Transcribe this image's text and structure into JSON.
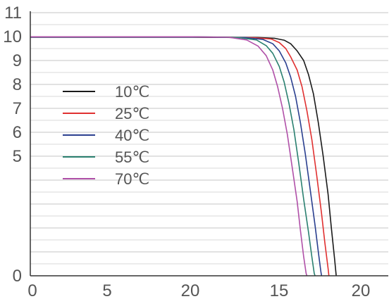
{
  "chart_data": {
    "type": "line",
    "title": "",
    "xlabel": "",
    "ylabel": "",
    "x_tick_labels": [
      "0",
      "5",
      "20",
      "15",
      "20"
    ],
    "y_tick_labels": [
      "0",
      "5",
      "6",
      "7",
      "8",
      "9",
      "10",
      "11"
    ],
    "ylim": [
      0,
      11
    ],
    "grid": true,
    "legend_position": "left",
    "series": [
      {
        "name": "10℃",
        "color": "#1a1a1a",
        "points": [
          [
            0,
            9.97
          ],
          [
            10,
            9.97
          ],
          [
            14,
            9.96
          ],
          [
            15,
            9.93
          ],
          [
            15.6,
            9.85
          ],
          [
            16,
            9.7
          ],
          [
            16.4,
            9.4
          ],
          [
            16.8,
            9.0
          ],
          [
            17.1,
            8.4
          ],
          [
            17.4,
            7.6
          ],
          [
            17.7,
            6.4
          ],
          [
            18.0,
            5.0
          ],
          [
            18.3,
            3.4
          ],
          [
            18.5,
            2.0
          ],
          [
            18.7,
            0.7
          ],
          [
            18.8,
            0
          ]
        ]
      },
      {
        "name": "25℃",
        "color": "#e03030",
        "points": [
          [
            0,
            9.98
          ],
          [
            10,
            9.98
          ],
          [
            13.6,
            9.96
          ],
          [
            14.8,
            9.9
          ],
          [
            15.3,
            9.75
          ],
          [
            15.7,
            9.5
          ],
          [
            16.0,
            9.15
          ],
          [
            16.4,
            8.6
          ],
          [
            16.7,
            7.9
          ],
          [
            17.0,
            6.9
          ],
          [
            17.3,
            5.7
          ],
          [
            17.6,
            4.2
          ],
          [
            17.9,
            2.6
          ],
          [
            18.1,
            1.4
          ],
          [
            18.3,
            0.3
          ],
          [
            18.35,
            0
          ]
        ]
      },
      {
        "name": "40℃",
        "color": "#2a3f8f",
        "points": [
          [
            0,
            9.98
          ],
          [
            10,
            9.98
          ],
          [
            13.2,
            9.96
          ],
          [
            14.3,
            9.88
          ],
          [
            14.9,
            9.7
          ],
          [
            15.3,
            9.4
          ],
          [
            15.7,
            8.9
          ],
          [
            16.0,
            8.3
          ],
          [
            16.3,
            7.5
          ],
          [
            16.6,
            6.4
          ],
          [
            16.9,
            5.1
          ],
          [
            17.2,
            3.6
          ],
          [
            17.5,
            2.1
          ],
          [
            17.7,
            1.0
          ],
          [
            17.85,
            0.2
          ],
          [
            17.9,
            0
          ]
        ]
      },
      {
        "name": "55℃",
        "color": "#2a8070",
        "points": [
          [
            0,
            9.99
          ],
          [
            10,
            9.99
          ],
          [
            12.8,
            9.96
          ],
          [
            13.9,
            9.86
          ],
          [
            14.5,
            9.62
          ],
          [
            14.9,
            9.3
          ],
          [
            15.3,
            8.75
          ],
          [
            15.6,
            8.1
          ],
          [
            15.9,
            7.2
          ],
          [
            16.2,
            6.1
          ],
          [
            16.5,
            4.7
          ],
          [
            16.8,
            3.2
          ],
          [
            17.1,
            1.8
          ],
          [
            17.3,
            0.8
          ],
          [
            17.45,
            0.1
          ],
          [
            17.5,
            0
          ]
        ]
      },
      {
        "name": "70℃",
        "color": "#b050a8",
        "points": [
          [
            0,
            9.99
          ],
          [
            10,
            9.99
          ],
          [
            12.2,
            9.97
          ],
          [
            13.3,
            9.86
          ],
          [
            14.0,
            9.6
          ],
          [
            14.5,
            9.2
          ],
          [
            14.9,
            8.6
          ],
          [
            15.2,
            7.9
          ],
          [
            15.5,
            7.0
          ],
          [
            15.8,
            5.9
          ],
          [
            16.1,
            4.5
          ],
          [
            16.4,
            3.1
          ],
          [
            16.6,
            1.9
          ],
          [
            16.8,
            0.8
          ],
          [
            16.95,
            0.1
          ],
          [
            17.0,
            0
          ]
        ]
      }
    ]
  }
}
